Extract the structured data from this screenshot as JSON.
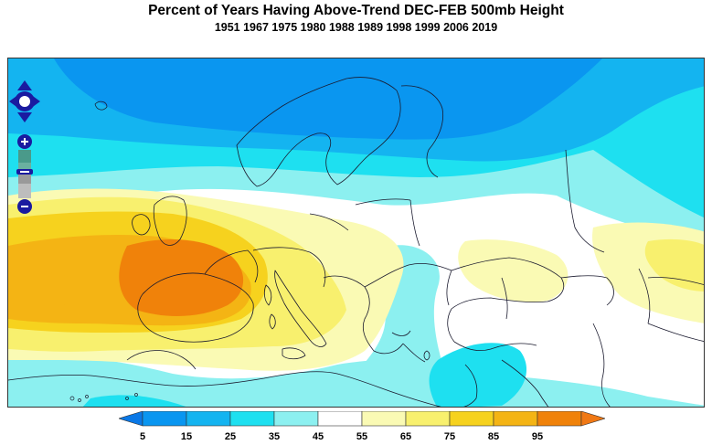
{
  "title": "Percent of Years Having Above-Trend DEC-FEB 500mb Height",
  "subtitle": "1951 1967 1975 1980 1988 1989 1998 1999 2006 2019",
  "legend": {
    "labels": [
      "5",
      "15",
      "25",
      "35",
      "45",
      "55",
      "65",
      "75",
      "85",
      "95"
    ],
    "colors": [
      "#0a96f0",
      "#14b4f0",
      "#1ee0f0",
      "#8cf0f0",
      "#ffffff",
      "#fafab4",
      "#f8f06e",
      "#f6d21e",
      "#f4b414",
      "#f0820a"
    ],
    "left_arrow_color": "#0a78e6",
    "right_arrow_color": "#f07814"
  },
  "controls": {
    "pan": "pan-arrows-icon",
    "zoom_in": "plus-icon",
    "zoom_out": "minus-icon"
  }
}
